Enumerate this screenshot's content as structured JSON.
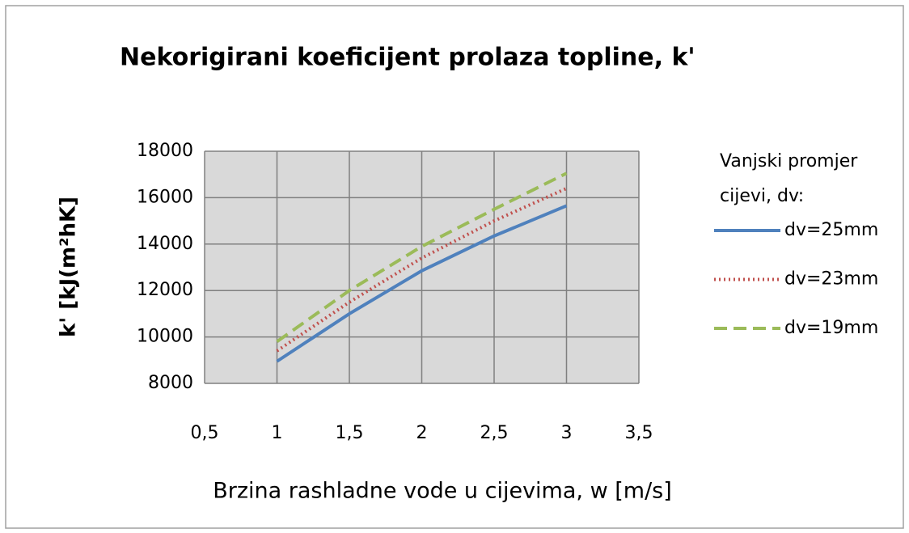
{
  "chart_data": {
    "type": "line",
    "title": "Nekorigirani koeficijent prolaza topline, k'",
    "x_label": "Brzina rashladne vode u cijevima, w [m/s]",
    "y_label": "k'  [kJ(m²hK]",
    "legend_title": [
      "Vanjski promjer",
      "cijevi, dv:"
    ],
    "legend_position": "right",
    "grid": true,
    "x": [
      1,
      1.5,
      2,
      2.5,
      3
    ],
    "xlim": [
      0.5,
      3.5
    ],
    "xticks": [
      {
        "value": 0.5,
        "label": "0,5"
      },
      1,
      {
        "value": 1.5,
        "label": "1,5"
      },
      2,
      {
        "value": 2.5,
        "label": "2,5"
      },
      3,
      {
        "value": 3.5,
        "label": "3,5"
      }
    ],
    "ylim": [
      8000,
      18000
    ],
    "yticks": [
      8000,
      10000,
      12000,
      14000,
      16000,
      18000
    ],
    "series": [
      {
        "name": "dv=25mm",
        "color": "#4f81bd",
        "style": "solid",
        "values": [
          8950,
          11000,
          12850,
          14350,
          15650
        ]
      },
      {
        "name": "dv=23mm",
        "color": "#c0504d",
        "style": "dotted",
        "values": [
          9400,
          11500,
          13400,
          15000,
          16400
        ]
      },
      {
        "name": "dv=19mm",
        "color": "#9bbb59",
        "style": "dashed",
        "values": [
          9800,
          12000,
          13900,
          15500,
          17050
        ]
      }
    ]
  }
}
